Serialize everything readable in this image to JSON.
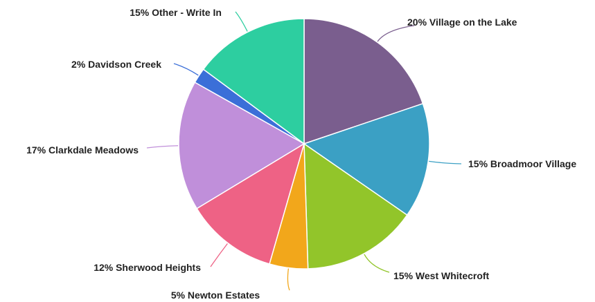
{
  "chart_data": {
    "type": "pie",
    "title": "",
    "slices": [
      {
        "label": "20% Village on the Lake",
        "value": 20,
        "color": "#7a5e8e"
      },
      {
        "label": "15% Broadmoor Village",
        "value": 15,
        "color": "#3ba0c4"
      },
      {
        "label": "15% West Whitecroft",
        "value": 15,
        "color": "#92c52a"
      },
      {
        "label": "5% Newton Estates",
        "value": 5,
        "color": "#f2a71b"
      },
      {
        "label": "12% Sherwood Heights",
        "value": 12,
        "color": "#ee6285"
      },
      {
        "label": "17% Clarkdale Meadows",
        "value": 17,
        "color": "#c08fda"
      },
      {
        "label": "2% Davidson Creek",
        "value": 2,
        "color": "#3b6fd8"
      },
      {
        "label": "15% Other - Write In",
        "value": 15,
        "color": "#2dcea0"
      }
    ],
    "start_angle": "12 o'clock",
    "direction": "clockwise",
    "legend": "none"
  }
}
